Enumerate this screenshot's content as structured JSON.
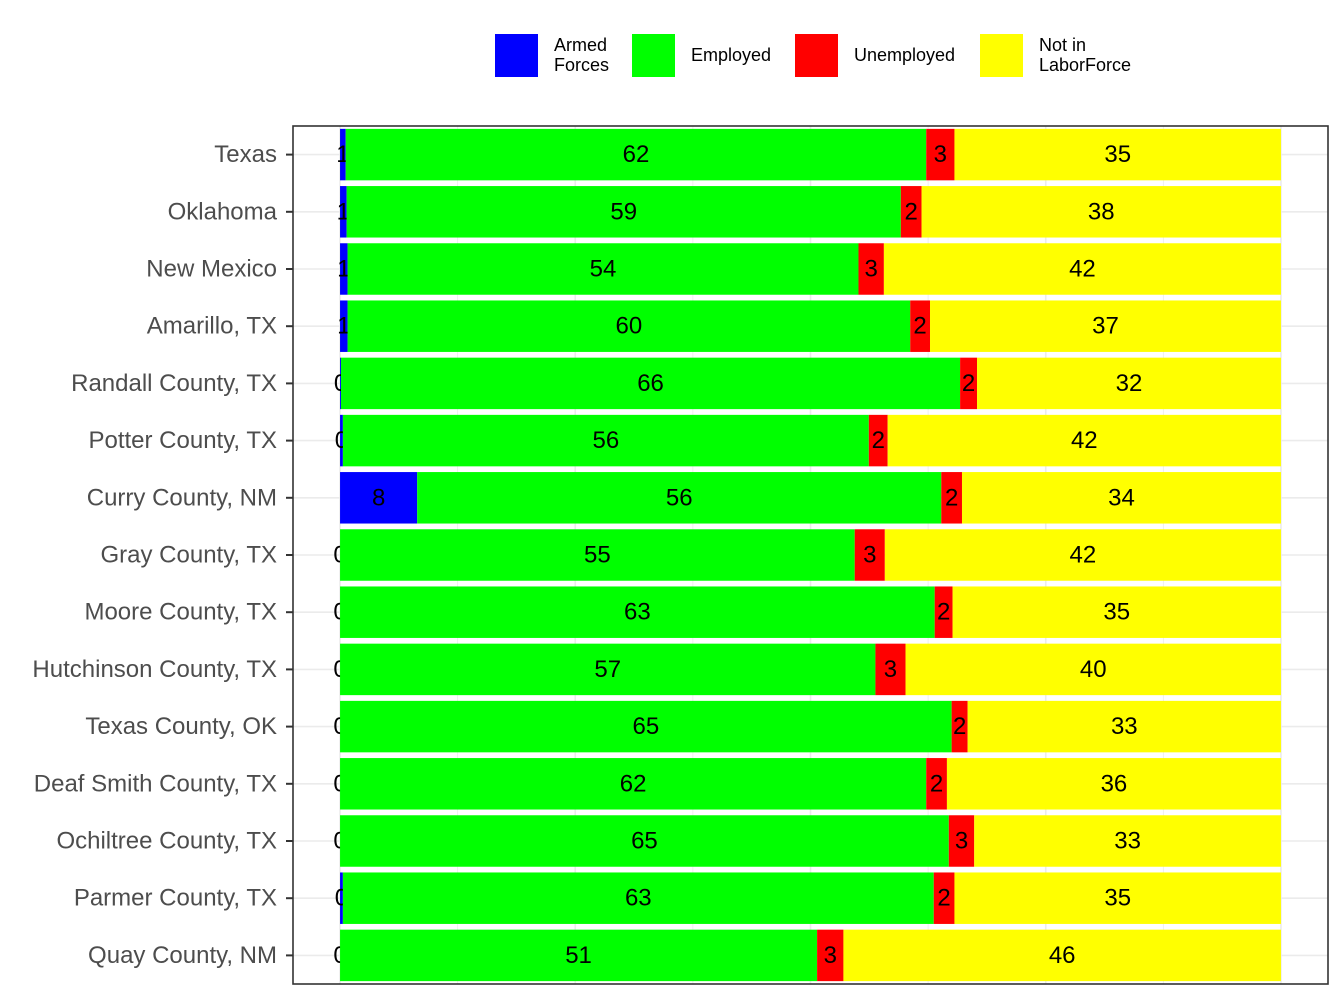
{
  "chart_data": {
    "type": "bar",
    "orientation": "horizontal",
    "stacked": true,
    "categories": [
      "Texas",
      "Oklahoma",
      "New Mexico",
      "Amarillo, TX",
      "Randall County, TX",
      "Potter County, TX",
      "Curry County, NM",
      "Gray County, TX",
      "Moore County, TX",
      "Hutchinson County, TX",
      "Texas County, OK",
      "Deaf Smith County, TX",
      "Ochiltree County, TX",
      "Parmer County, TX",
      "Quay County, NM"
    ],
    "series": [
      {
        "name": "Armed\nForces",
        "color": "#0000FF",
        "values": [
          0.6,
          0.7,
          0.8,
          0.8,
          0.1,
          0.3,
          8.2,
          0.0,
          0.0,
          0.0,
          0.0,
          0.0,
          0.0,
          0.3,
          0.0
        ],
        "labels": [
          "1",
          "1",
          "1",
          "1",
          "0",
          "0",
          "8",
          "0",
          "0",
          "0",
          "0",
          "0",
          "0",
          "0",
          "0"
        ]
      },
      {
        "name": "Employed",
        "color": "#00FF00",
        "values": [
          61.7,
          58.9,
          54.3,
          59.8,
          65.8,
          55.9,
          55.7,
          54.7,
          63.2,
          56.9,
          65.0,
          62.3,
          64.7,
          62.8,
          50.7
        ],
        "labels": [
          "62",
          "59",
          "54",
          "60",
          "66",
          "56",
          "56",
          "55",
          "63",
          "57",
          "65",
          "62",
          "65",
          "63",
          "51"
        ]
      },
      {
        "name": "Unemployed",
        "color": "#FF0000",
        "values": [
          3.0,
          2.2,
          2.7,
          2.1,
          1.8,
          2.0,
          2.2,
          3.2,
          1.9,
          3.2,
          1.7,
          2.2,
          2.7,
          2.2,
          2.8
        ],
        "labels": [
          "3",
          "2",
          "3",
          "2",
          "2",
          "2",
          "2",
          "3",
          "2",
          "3",
          "2",
          "2",
          "3",
          "2",
          "3"
        ]
      },
      {
        "name": "Not in\nLaborForce",
        "color": "#FFFF00",
        "values": [
          34.7,
          38.2,
          42.2,
          37.3,
          32.3,
          41.8,
          33.9,
          42.1,
          34.9,
          39.9,
          33.3,
          35.5,
          32.6,
          34.7,
          46.5
        ],
        "labels": [
          "35",
          "38",
          "42",
          "37",
          "32",
          "42",
          "34",
          "42",
          "35",
          "40",
          "33",
          "36",
          "33",
          "35",
          "46"
        ]
      }
    ],
    "xlim": [
      -5,
      105
    ],
    "title": "",
    "xlabel": "",
    "ylabel": "",
    "grid": true,
    "legend_position": "top"
  }
}
